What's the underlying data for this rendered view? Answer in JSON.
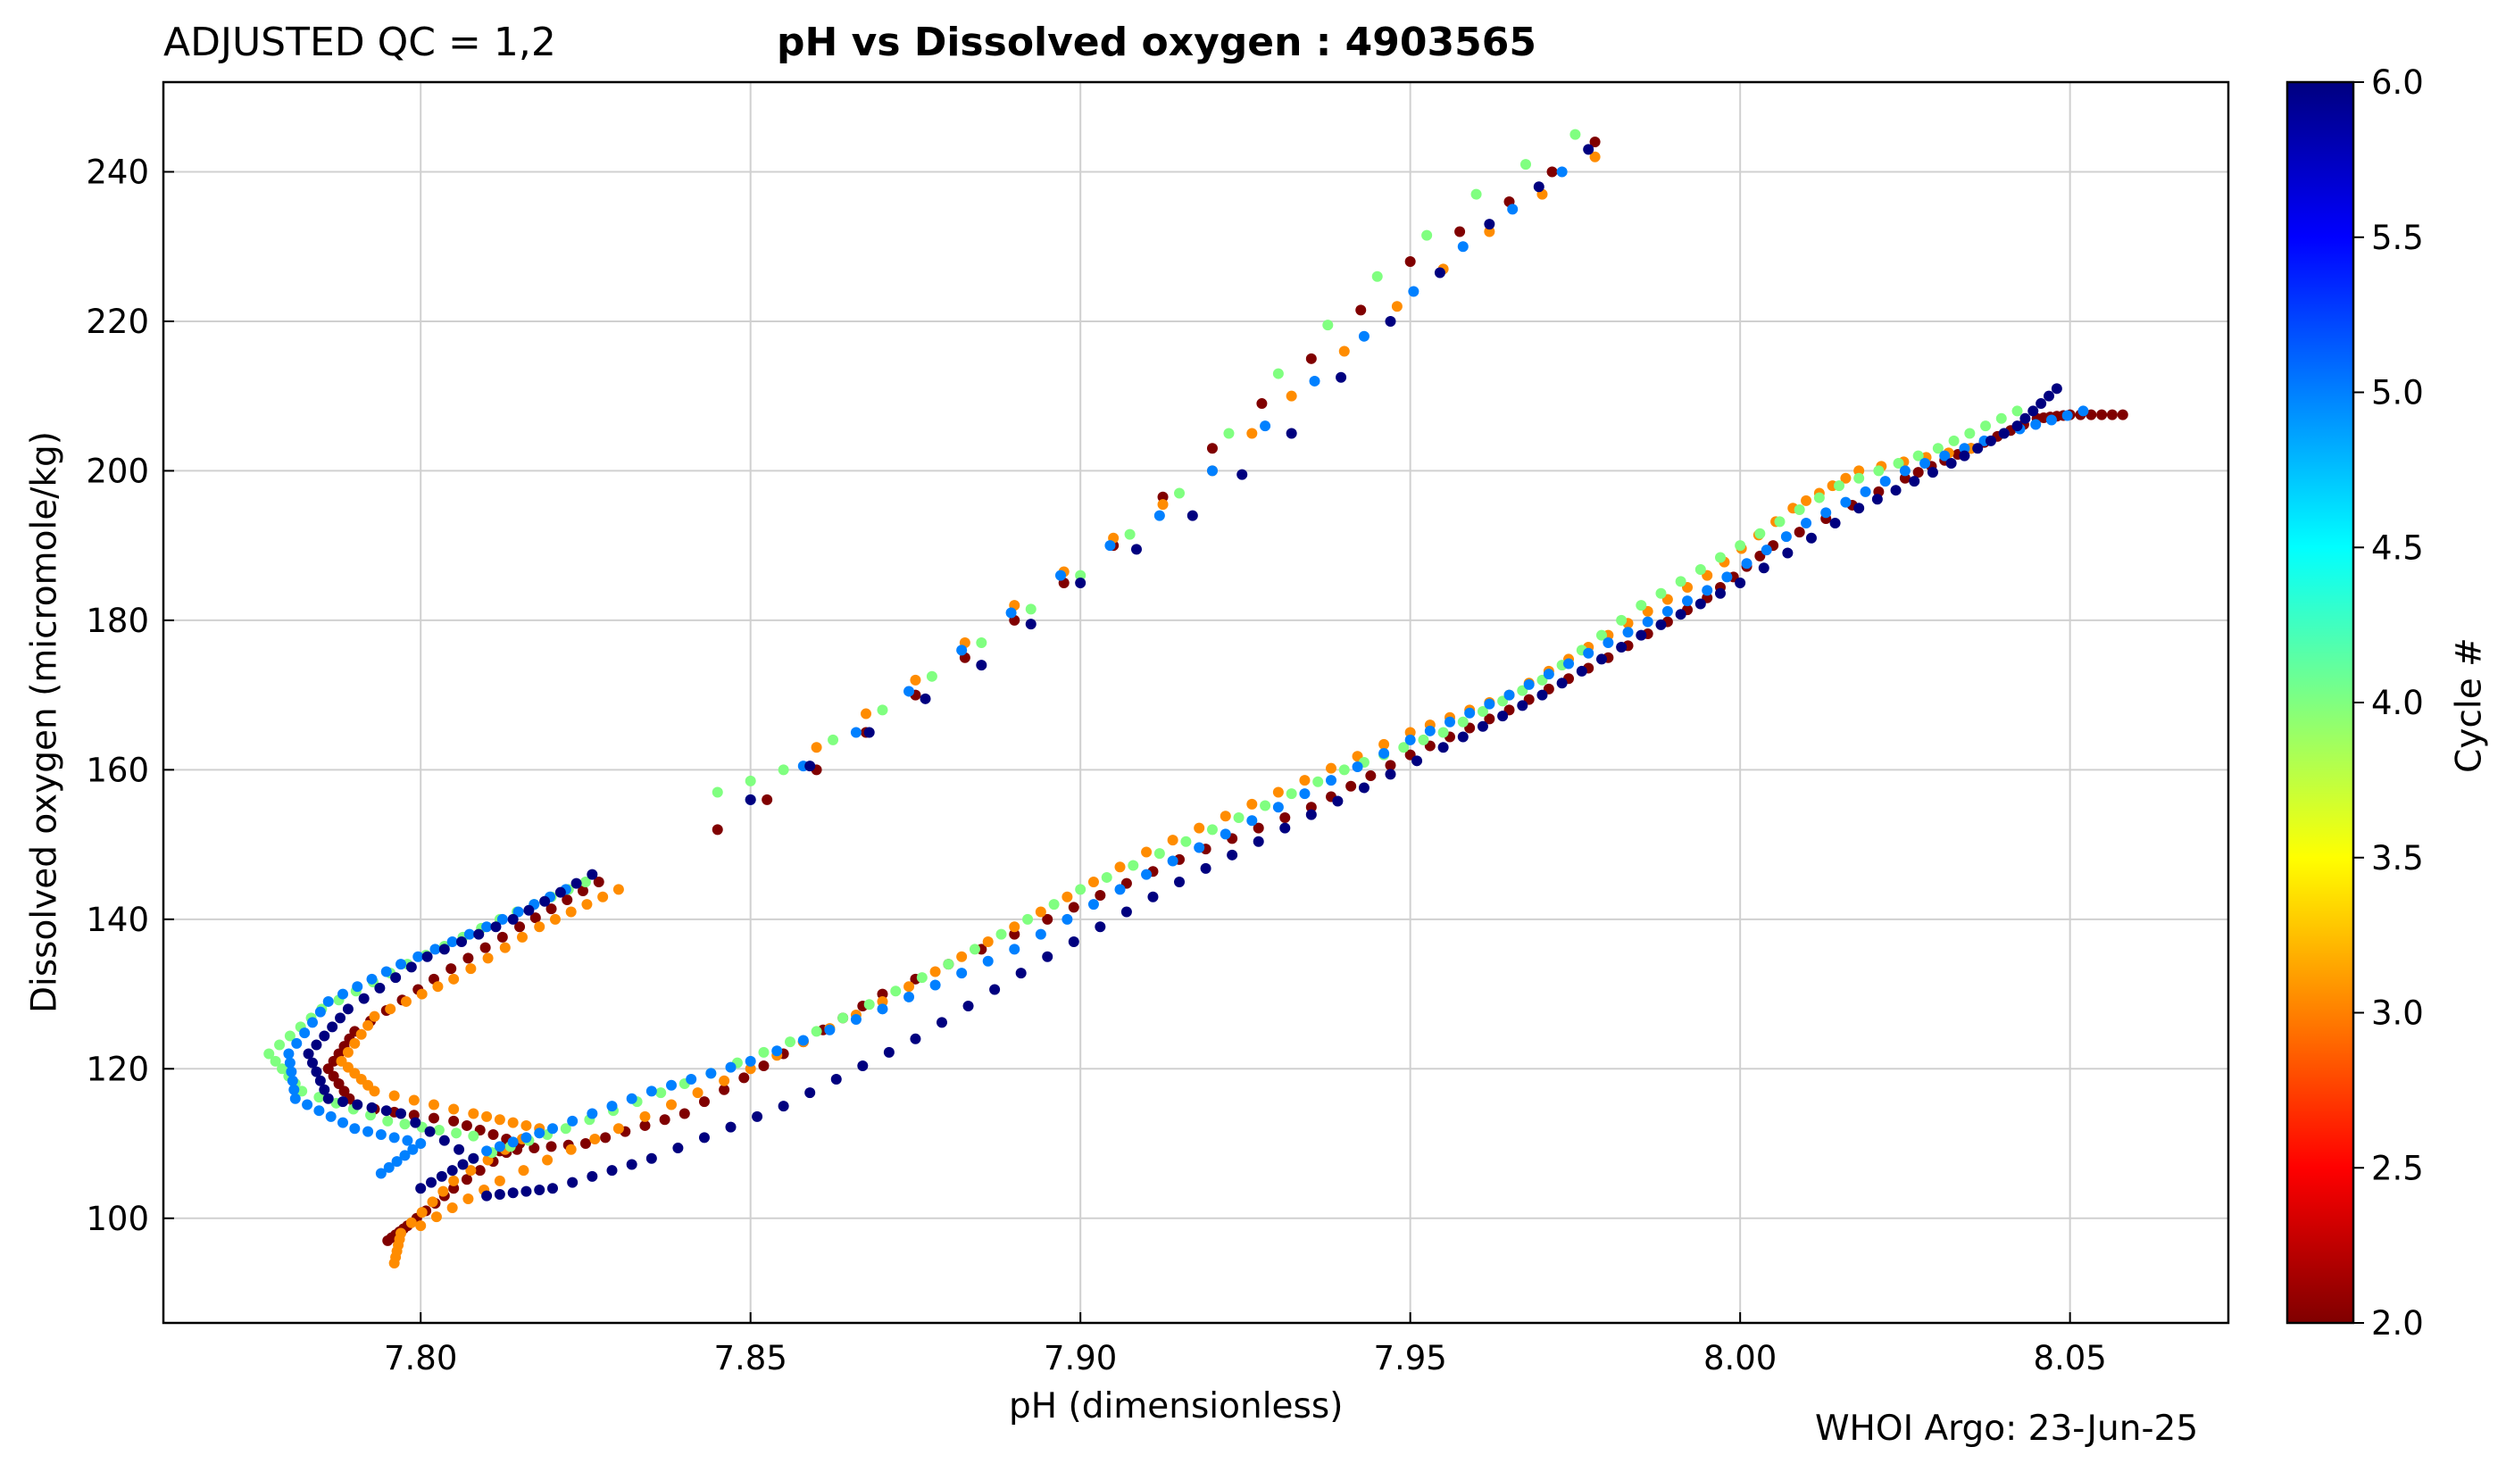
{
  "header": {
    "qc_label": "ADJUSTED QC = 1,2",
    "title": "pH vs Dissolved oxygen : 4903565"
  },
  "footer": {
    "credit": "WHOI Argo: 23-Jun-25"
  },
  "chart_data": {
    "type": "scatter",
    "title": "pH vs Dissolved oxygen : 4903565",
    "xlabel": "pH  (dimensionless)",
    "ylabel": "Dissolved oxygen  (micromole/kg)",
    "xlim": [
      7.761,
      8.074
    ],
    "ylim": [
      86,
      252
    ],
    "xticks": [
      "7.80",
      "7.85",
      "7.90",
      "7.95",
      "8.00",
      "8.05"
    ],
    "yticks": [
      "100",
      "120",
      "140",
      "160",
      "180",
      "200",
      "220",
      "240"
    ],
    "grid": true,
    "colorbar": {
      "label": "Cycle #",
      "range": [
        2.0,
        6.0
      ],
      "ticks": [
        "2.0",
        "2.5",
        "3.0",
        "3.5",
        "4.0",
        "4.5",
        "5.0",
        "5.5",
        "6.0"
      ],
      "colormap": "jet"
    },
    "series": [
      {
        "cycle": 2,
        "color": "#800000",
        "shallow": [
          [
            8.058,
            207.5
          ],
          [
            8.05,
            207.5
          ],
          [
            8.045,
            207
          ],
          [
            8.035,
            203
          ],
          [
            8.025,
            199
          ],
          [
            8.005,
            190
          ],
          [
            7.995,
            183
          ],
          [
            7.98,
            175
          ],
          [
            7.965,
            168
          ],
          [
            7.95,
            162
          ],
          [
            7.935,
            155
          ],
          [
            7.915,
            148
          ],
          [
            7.895,
            140
          ],
          [
            7.87,
            130
          ],
          [
            7.855,
            122
          ],
          [
            7.84,
            114
          ],
          [
            7.825,
            110
          ],
          [
            7.812,
            109
          ]
        ],
        "deep": [
          [
            7.827,
            145
          ],
          [
            7.815,
            139
          ],
          [
            7.802,
            132
          ],
          [
            7.79,
            125
          ],
          [
            7.786,
            120
          ],
          [
            7.79,
            115
          ],
          [
            7.805,
            113
          ],
          [
            7.815,
            110
          ],
          [
            7.805,
            104
          ],
          [
            7.798,
            99
          ],
          [
            7.795,
            97
          ]
        ],
        "upper": [
          [
            7.978,
            244
          ],
          [
            7.965,
            236
          ],
          [
            7.95,
            228
          ],
          [
            7.935,
            215
          ],
          [
            7.92,
            203
          ],
          [
            7.905,
            190
          ],
          [
            7.89,
            180
          ],
          [
            7.875,
            170
          ],
          [
            7.86,
            160
          ],
          [
            7.845,
            152
          ]
        ]
      },
      {
        "cycle": 3,
        "color": "#ff8c00",
        "shallow": [
          [
            8.035,
            203
          ],
          [
            8.018,
            200
          ],
          [
            8.008,
            195
          ],
          [
            7.995,
            186
          ],
          [
            7.98,
            178
          ],
          [
            7.965,
            170
          ],
          [
            7.95,
            165
          ],
          [
            7.93,
            157
          ],
          [
            7.91,
            149
          ],
          [
            7.89,
            139
          ],
          [
            7.87,
            129
          ],
          [
            7.85,
            120
          ],
          [
            7.83,
            112
          ],
          [
            7.812,
            105
          ],
          [
            7.8,
            99
          ]
        ],
        "deep": [
          [
            7.83,
            144
          ],
          [
            7.818,
            139
          ],
          [
            7.805,
            132
          ],
          [
            7.793,
            127
          ],
          [
            7.788,
            121
          ],
          [
            7.793,
            117
          ],
          [
            7.808,
            114
          ],
          [
            7.818,
            112
          ],
          [
            7.805,
            105
          ],
          [
            7.797,
            98
          ],
          [
            7.796,
            94
          ]
        ],
        "upper": [
          [
            7.978,
            242
          ],
          [
            7.962,
            232
          ],
          [
            7.948,
            222
          ],
          [
            7.932,
            210
          ],
          [
            7.92,
            200
          ],
          [
            7.905,
            191
          ],
          [
            7.89,
            182
          ],
          [
            7.875,
            172
          ],
          [
            7.86,
            163
          ]
        ]
      },
      {
        "cycle": 4,
        "color": "#80ff80",
        "shallow": [
          [
            8.042,
            208
          ],
          [
            8.03,
            203
          ],
          [
            8.015,
            198
          ],
          [
            8.0,
            190
          ],
          [
            7.985,
            182
          ],
          [
            7.97,
            172
          ],
          [
            7.955,
            165
          ],
          [
            7.94,
            160
          ],
          [
            7.92,
            152
          ],
          [
            7.9,
            144
          ],
          [
            7.88,
            134
          ],
          [
            7.86,
            125
          ],
          [
            7.84,
            118
          ],
          [
            7.822,
            112
          ],
          [
            7.808,
            108
          ]
        ],
        "deep": [
          [
            7.825,
            145
          ],
          [
            7.812,
            140
          ],
          [
            7.798,
            134
          ],
          [
            7.785,
            128
          ],
          [
            7.777,
            122
          ],
          [
            7.782,
            117
          ],
          [
            7.795,
            113
          ],
          [
            7.808,
            111
          ]
        ],
        "upper": [
          [
            7.975,
            245
          ],
          [
            7.96,
            237
          ],
          [
            7.945,
            226
          ],
          [
            7.93,
            213
          ],
          [
            7.915,
            197
          ],
          [
            7.9,
            186
          ],
          [
            7.885,
            177
          ],
          [
            7.87,
            168
          ],
          [
            7.855,
            160
          ],
          [
            7.845,
            157
          ]
        ]
      },
      {
        "cycle": 5,
        "color": "#0080ff",
        "shallow": [
          [
            8.052,
            208
          ],
          [
            8.04,
            205
          ],
          [
            8.025,
            200
          ],
          [
            8.01,
            193
          ],
          [
            7.995,
            184
          ],
          [
            7.98,
            177
          ],
          [
            7.965,
            170
          ],
          [
            7.95,
            164
          ],
          [
            7.93,
            155
          ],
          [
            7.91,
            146
          ],
          [
            7.89,
            136
          ],
          [
            7.87,
            128
          ],
          [
            7.85,
            121
          ],
          [
            7.835,
            117
          ],
          [
            7.82,
            112
          ],
          [
            7.81,
            109
          ]
        ],
        "deep": [
          [
            7.822,
            144
          ],
          [
            7.81,
            139
          ],
          [
            7.797,
            134
          ],
          [
            7.786,
            129
          ],
          [
            7.78,
            122
          ],
          [
            7.781,
            116
          ],
          [
            7.79,
            112
          ],
          [
            7.8,
            110
          ],
          [
            7.794,
            106
          ]
        ],
        "upper": [
          [
            7.973,
            240
          ],
          [
            7.958,
            230
          ],
          [
            7.943,
            218
          ],
          [
            7.928,
            206
          ],
          [
            7.912,
            194
          ],
          [
            7.897,
            186
          ],
          [
            7.882,
            176
          ],
          [
            7.866,
            165
          ],
          [
            7.85,
            156
          ]
        ]
      },
      {
        "cycle": 6,
        "color": "#00007f",
        "shallow": [
          [
            8.048,
            211
          ],
          [
            8.042,
            206
          ],
          [
            8.032,
            201
          ],
          [
            8.018,
            195
          ],
          [
            8.0,
            185
          ],
          [
            7.985,
            178
          ],
          [
            7.97,
            170
          ],
          [
            7.955,
            163
          ],
          [
            7.935,
            154
          ],
          [
            7.915,
            145
          ],
          [
            7.895,
            135
          ],
          [
            7.875,
            124
          ],
          [
            7.855,
            115
          ],
          [
            7.835,
            108
          ],
          [
            7.82,
            104
          ],
          [
            7.81,
            103
          ]
        ],
        "deep": [
          [
            7.826,
            146
          ],
          [
            7.814,
            140
          ],
          [
            7.801,
            135
          ],
          [
            7.789,
            128
          ],
          [
            7.783,
            122
          ],
          [
            7.786,
            116
          ],
          [
            7.797,
            114
          ],
          [
            7.808,
            108
          ],
          [
            7.8,
            104
          ]
        ],
        "upper": [
          [
            7.977,
            243
          ],
          [
            7.962,
            233
          ],
          [
            7.947,
            220
          ],
          [
            7.932,
            205
          ],
          [
            7.917,
            194
          ],
          [
            7.9,
            185
          ],
          [
            7.885,
            174
          ],
          [
            7.868,
            165
          ],
          [
            7.85,
            156
          ]
        ]
      }
    ]
  }
}
